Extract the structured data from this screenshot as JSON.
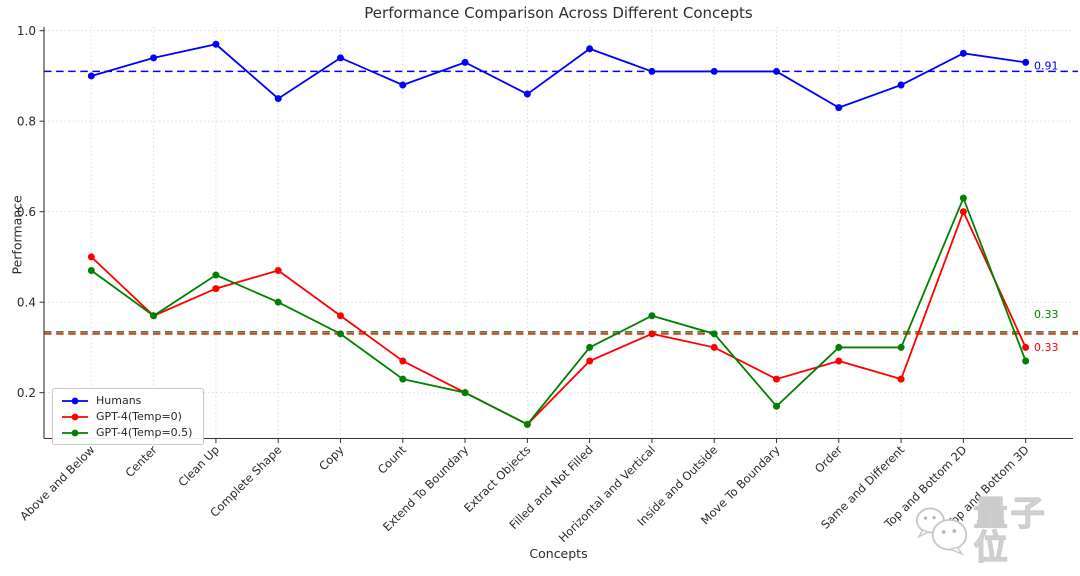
{
  "chart_data": {
    "type": "line",
    "title": "Performance Comparison Across Different Concepts",
    "xlabel": "Concepts",
    "ylabel": "Performance",
    "categories": [
      "Above and Below",
      "Center",
      "Clean Up",
      "Complete Shape",
      "Copy",
      "Count",
      "Extend To Boundary",
      "Extract Objects",
      "Filled and Not Filled",
      "Horizontal and Vertical",
      "Inside and Outside",
      "Move To Boundary",
      "Order",
      "Same and Different",
      "Top and Bottom 2D",
      "Top and Bottom 3D"
    ],
    "series": [
      {
        "name": "Humans",
        "color": "#0000ff",
        "values": [
          0.9,
          0.94,
          0.97,
          0.85,
          0.94,
          0.88,
          0.93,
          0.86,
          0.96,
          0.91,
          0.91,
          0.91,
          0.83,
          0.88,
          0.95,
          0.93
        ],
        "mean": 0.91,
        "mean_label": "0.91"
      },
      {
        "name": "GPT-4(Temp=0)",
        "color": "#ff0000",
        "values": [
          0.5,
          0.37,
          0.43,
          0.47,
          0.37,
          0.27,
          0.2,
          0.13,
          0.27,
          0.33,
          0.3,
          0.23,
          0.27,
          0.23,
          0.6,
          0.3
        ],
        "mean": 0.33,
        "mean_label": "0.33"
      },
      {
        "name": "GPT-4(Temp=0.5)",
        "color": "#008000",
        "values": [
          0.47,
          0.37,
          0.46,
          0.4,
          0.33,
          0.23,
          0.2,
          0.13,
          0.3,
          0.37,
          0.33,
          0.17,
          0.3,
          0.3,
          0.63,
          0.27
        ],
        "mean": 0.33,
        "mean_label": "0.33"
      }
    ],
    "yticks": [
      0.2,
      0.4,
      0.6,
      0.8,
      1.0
    ],
    "ytick_labels": [
      "0.2",
      "0.4",
      "0.6",
      "0.8",
      "1.0"
    ],
    "ylim": [
      0.099,
      1.008
    ],
    "grid": true,
    "legend_position": "lower left"
  },
  "watermark": {
    "text": "量子位",
    "icon": "chat-bubbles-icon"
  }
}
